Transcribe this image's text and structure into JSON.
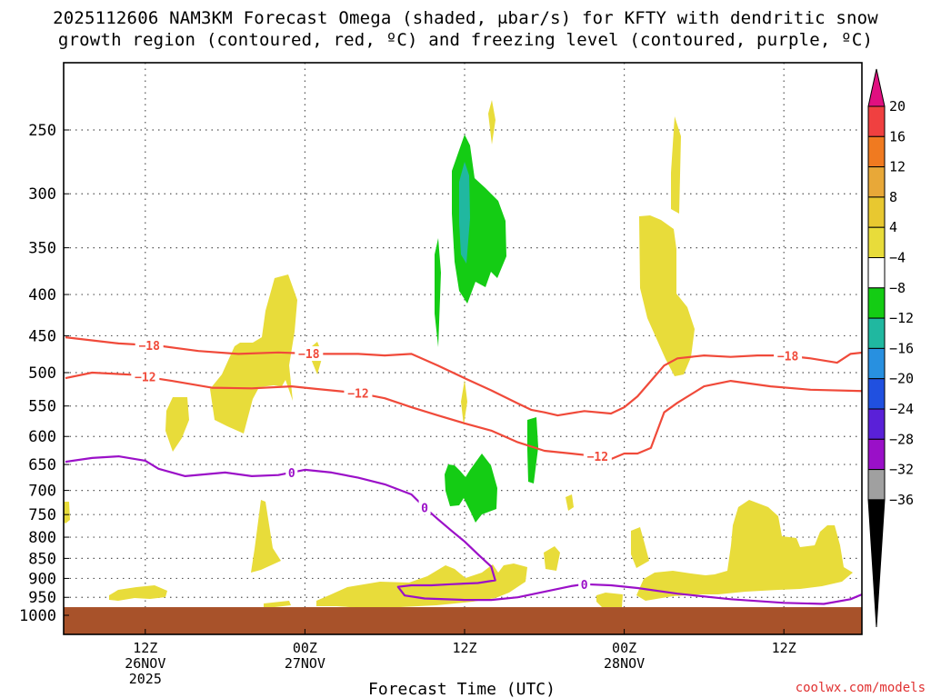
{
  "chart_data": {
    "type": "heatmap",
    "title_line1": "2025112606 NAM3KM Forecast Omega (shaded, μbar/s) for KFTY with dendritic snow",
    "title_line2": "growth region (contoured, red, ºC) and freezing level (contoured, purple, ºC)",
    "xlabel": "Forecast Time (UTC)",
    "credit": "coolwx.com/models",
    "x_range_hours": [
      0,
      60
    ],
    "y_range_hpa": [
      1000,
      200
    ],
    "x_ticks": [
      {
        "hour": 6,
        "line1": "12Z",
        "line2": "26NOV",
        "line3": "2025"
      },
      {
        "hour": 18,
        "line1": "00Z",
        "line2": "27NOV",
        "line3": ""
      },
      {
        "hour": 30,
        "line1": "12Z",
        "line2": "",
        "line3": ""
      },
      {
        "hour": 42,
        "line1": "00Z",
        "line2": "28NOV",
        "line3": ""
      },
      {
        "hour": 54,
        "line1": "12Z",
        "line2": "",
        "line3": ""
      }
    ],
    "y_ticks": [
      250,
      300,
      350,
      400,
      450,
      500,
      550,
      600,
      650,
      700,
      750,
      800,
      850,
      900,
      950,
      1000
    ],
    "colorbar": {
      "labels": [
        "20",
        "16",
        "12",
        "8",
        "4",
        "−4",
        "−8",
        "−12",
        "−16",
        "−20",
        "−24",
        "−28",
        "−32",
        "−36"
      ],
      "colors": [
        "#f04040",
        "#f07a20",
        "#e8a838",
        "#e8c830",
        "#e8dc3a",
        "#ffffff",
        "#14cc14",
        "#20b8a0",
        "#2890e0",
        "#2050e0",
        "#5a20d8",
        "#9a10c8",
        "#a0a0a0"
      ],
      "top_color": "#e01080",
      "bottom_color": "#000000"
    },
    "colors": {
      "dgz": "#f04a3a",
      "freezing": "#9b10c8",
      "ground": "#a8522a",
      "positive_omega": "#e8dc3a",
      "negative_omega_8": "#14cc14",
      "negative_omega_12": "#20b8a0"
    },
    "series": [
      {
        "name": "-18",
        "label": "−18",
        "label_hours": [
          6.3,
          18.3,
          54.3
        ],
        "points": [
          [
            0,
            452
          ],
          [
            4,
            460
          ],
          [
            7,
            463
          ],
          [
            10,
            470
          ],
          [
            13,
            474
          ],
          [
            16,
            472
          ],
          [
            19,
            474
          ],
          [
            22,
            474
          ],
          [
            24,
            476
          ],
          [
            26,
            474
          ],
          [
            28,
            490
          ],
          [
            30,
            508
          ],
          [
            32,
            526
          ],
          [
            34,
            546
          ],
          [
            35,
            556
          ],
          [
            36,
            560
          ],
          [
            37,
            565
          ],
          [
            39,
            558
          ],
          [
            41,
            562
          ],
          [
            42,
            552
          ],
          [
            43,
            535
          ],
          [
            44,
            512
          ],
          [
            45,
            490
          ],
          [
            46,
            480
          ],
          [
            48,
            476
          ],
          [
            50,
            478
          ],
          [
            52,
            476
          ],
          [
            54,
            476
          ],
          [
            56,
            480
          ],
          [
            58,
            486
          ],
          [
            59,
            474
          ],
          [
            60,
            472
          ]
        ]
      },
      {
        "name": "-12",
        "label": "−12",
        "label_hours": [
          6,
          22,
          40
        ],
        "points": [
          [
            0,
            508
          ],
          [
            2,
            500
          ],
          [
            5,
            503
          ],
          [
            8,
            512
          ],
          [
            11,
            522
          ],
          [
            14,
            523
          ],
          [
            17,
            520
          ],
          [
            19,
            524
          ],
          [
            22,
            530
          ],
          [
            24,
            538
          ],
          [
            26,
            552
          ],
          [
            28,
            565
          ],
          [
            30,
            578
          ],
          [
            32,
            590
          ],
          [
            34,
            610
          ],
          [
            36,
            625
          ],
          [
            38,
            630
          ],
          [
            40,
            635
          ],
          [
            41,
            640
          ],
          [
            42,
            630
          ],
          [
            43,
            630
          ],
          [
            44,
            620
          ],
          [
            45,
            560
          ],
          [
            46,
            545
          ],
          [
            48,
            520
          ],
          [
            50,
            512
          ],
          [
            53,
            520
          ],
          [
            56,
            525
          ],
          [
            60,
            527
          ]
        ]
      },
      {
        "name": "0",
        "label": "0",
        "label_hours": [
          17,
          27,
          39
        ],
        "points": [
          [
            0,
            645
          ],
          [
            2,
            638
          ],
          [
            4,
            635
          ],
          [
            6,
            643
          ],
          [
            7,
            658
          ],
          [
            9,
            672
          ],
          [
            12,
            665
          ],
          [
            14,
            672
          ],
          [
            16,
            670
          ],
          [
            18,
            660
          ],
          [
            20,
            665
          ],
          [
            22,
            675
          ],
          [
            24,
            688
          ],
          [
            26,
            708
          ],
          [
            27,
            735
          ],
          [
            28,
            760
          ],
          [
            29,
            785
          ],
          [
            30,
            810
          ],
          [
            31,
            840
          ],
          [
            32,
            870
          ],
          [
            32.3,
            905
          ],
          [
            31,
            912
          ],
          [
            29,
            915
          ],
          [
            27.5,
            918
          ],
          [
            26,
            918
          ],
          [
            25,
            922
          ],
          [
            25.5,
            945
          ],
          [
            27,
            953
          ],
          [
            30,
            957
          ],
          [
            32,
            957
          ],
          [
            34,
            950
          ],
          [
            36,
            935
          ],
          [
            38,
            920
          ],
          [
            39,
            915
          ],
          [
            41,
            918
          ],
          [
            43,
            925
          ],
          [
            46,
            940
          ],
          [
            50,
            955
          ],
          [
            54,
            965
          ],
          [
            57,
            968
          ],
          [
            59,
            955
          ],
          [
            60,
            940
          ]
        ]
      }
    ]
  }
}
